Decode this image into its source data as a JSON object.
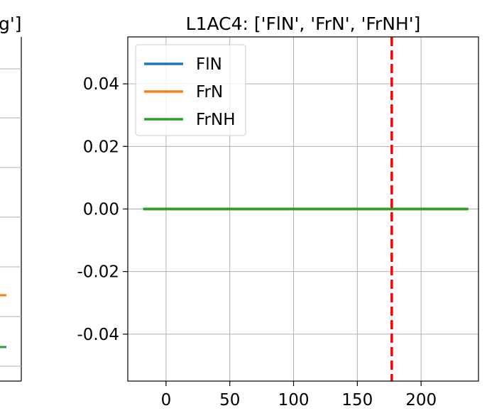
{
  "left_panel": {
    "title_fragment": "g']"
  },
  "chart_data": [
    {
      "type": "line",
      "title": "L1AC4: ['FlN', 'FrN', 'FrNH']",
      "xlabel": "",
      "ylabel": "",
      "xlim": [
        -30,
        245
      ],
      "ylim": [
        -0.055,
        0.055
      ],
      "x_ticks": [
        0,
        50,
        100,
        150,
        200
      ],
      "y_ticks": [
        0.04,
        0.02,
        0.0,
        -0.02,
        -0.04
      ],
      "x_tick_labels": [
        "0",
        "50",
        "100",
        "150",
        "200"
      ],
      "y_tick_labels": [
        "0.04",
        "0.02",
        "0.00",
        "-0.02",
        "-0.04"
      ],
      "grid": true,
      "legend_position": "top-left",
      "series": [
        {
          "name": "FlN",
          "color": "#1f77b4",
          "x": [
            -18,
            237
          ],
          "y": [
            0.0,
            0.0
          ]
        },
        {
          "name": "FrN",
          "color": "#ff7f0e",
          "x": [
            -18,
            237
          ],
          "y": [
            0.0,
            0.0
          ]
        },
        {
          "name": "FrNH",
          "color": "#2ca02c",
          "x": [
            -18,
            237
          ],
          "y": [
            0.0,
            0.0
          ]
        }
      ],
      "vline": {
        "x": 177,
        "color": "#ff0000",
        "style": "dashed"
      }
    }
  ]
}
